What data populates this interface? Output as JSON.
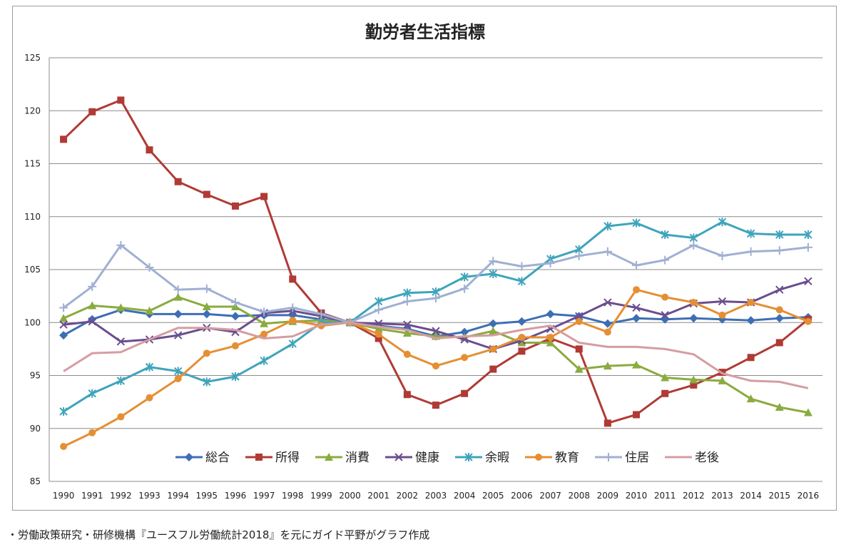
{
  "footnote": "・労働政策研究・研修機構『ユースフル労働統計2018』を元にガイド平野がグラフ作成",
  "chart_data": {
    "type": "line",
    "title": "勤労者生活指標",
    "xlabel": "",
    "ylabel": "",
    "ylim": [
      85,
      125
    ],
    "yticks": [
      85,
      90,
      95,
      100,
      105,
      110,
      115,
      120,
      125
    ],
    "grid": true,
    "legend": "bottom-inside",
    "x": [
      1990,
      1991,
      1992,
      1993,
      1994,
      1995,
      1996,
      1997,
      1998,
      1999,
      2000,
      2001,
      2002,
      2003,
      2004,
      2005,
      2006,
      2007,
      2008,
      2009,
      2010,
      2011,
      2012,
      2013,
      2014,
      2015,
      2016
    ],
    "series": [
      {
        "name": "総合",
        "color": "#3d6eb4",
        "marker": "diamond",
        "values": [
          98.8,
          100.3,
          101.2,
          100.8,
          100.8,
          100.8,
          100.6,
          100.7,
          100.7,
          100.3,
          100.0,
          99.7,
          99.4,
          98.7,
          99.1,
          99.9,
          100.1,
          100.8,
          100.6,
          99.9,
          100.4,
          100.3,
          100.4,
          100.3,
          100.2,
          100.4,
          100.5
        ]
      },
      {
        "name": "所得",
        "color": "#b03a35",
        "marker": "square",
        "values": [
          117.3,
          119.9,
          121.0,
          116.3,
          113.3,
          112.1,
          111.0,
          111.9,
          104.1,
          100.9,
          100.0,
          98.5,
          93.2,
          92.2,
          93.3,
          95.6,
          97.3,
          98.5,
          97.5,
          90.5,
          91.3,
          93.3,
          94.1,
          95.3,
          96.7,
          98.1,
          100.3
        ]
      },
      {
        "name": "消費",
        "color": "#8aab3f",
        "marker": "triangle",
        "values": [
          100.4,
          101.6,
          101.4,
          101.1,
          102.4,
          101.5,
          101.5,
          99.9,
          100.1,
          100.2,
          100.0,
          99.4,
          99.0,
          98.7,
          98.6,
          99.2,
          98.1,
          98.1,
          95.6,
          95.9,
          96.0,
          94.8,
          94.6,
          94.5,
          92.8,
          92.0,
          91.5
        ]
      },
      {
        "name": "健康",
        "color": "#6b4d8f",
        "marker": "x",
        "values": [
          99.8,
          100.1,
          98.2,
          98.4,
          98.8,
          99.5,
          99.1,
          100.9,
          101.1,
          100.6,
          100.0,
          99.9,
          99.8,
          99.2,
          98.4,
          97.5,
          98.3,
          99.4,
          100.6,
          101.9,
          101.4,
          100.7,
          101.8,
          102.0,
          101.9,
          103.1,
          103.9
        ]
      },
      {
        "name": "余暇",
        "color": "#3fa4bb",
        "marker": "asterisk",
        "values": [
          91.6,
          93.3,
          94.5,
          95.8,
          95.4,
          94.4,
          94.9,
          96.4,
          98.0,
          100.0,
          100.0,
          102.0,
          102.8,
          102.9,
          104.3,
          104.6,
          103.9,
          106.0,
          106.9,
          109.1,
          109.4,
          108.3,
          108.0,
          109.5,
          108.4,
          108.3,
          108.3
        ]
      },
      {
        "name": "教育",
        "color": "#e58f33",
        "marker": "circle",
        "values": [
          88.3,
          89.6,
          91.1,
          92.9,
          94.7,
          97.1,
          97.8,
          98.9,
          100.2,
          99.7,
          100.0,
          98.9,
          97.0,
          95.9,
          96.7,
          97.5,
          98.6,
          98.6,
          100.1,
          99.1,
          103.1,
          102.4,
          101.9,
          100.7,
          101.9,
          101.2,
          100.1
        ]
      },
      {
        "name": "住居",
        "color": "#9fb0d2",
        "marker": "plus",
        "values": [
          101.4,
          103.4,
          107.3,
          105.2,
          103.1,
          103.2,
          101.9,
          101.0,
          101.4,
          100.8,
          100.0,
          101.2,
          102.0,
          102.3,
          103.2,
          105.8,
          105.3,
          105.6,
          106.3,
          106.7,
          105.4,
          105.9,
          107.3,
          106.3,
          106.7,
          106.8,
          107.1
        ]
      },
      {
        "name": "老後",
        "color": "#d59da1",
        "marker": "none",
        "values": [
          95.4,
          97.1,
          97.2,
          98.4,
          99.5,
          99.5,
          99.3,
          98.5,
          98.7,
          99.8,
          100.0,
          99.6,
          99.3,
          98.5,
          98.7,
          98.8,
          99.3,
          99.7,
          98.1,
          97.7,
          97.7,
          97.5,
          97.0,
          95.2,
          94.5,
          94.4,
          93.8
        ]
      }
    ]
  }
}
